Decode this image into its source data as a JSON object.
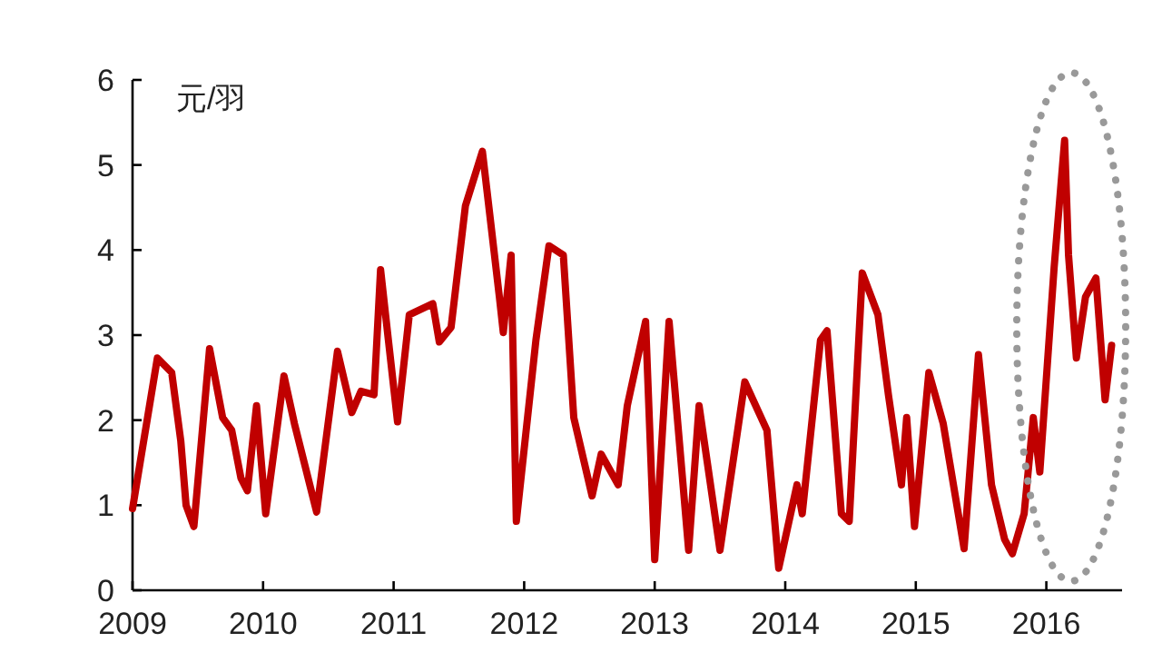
{
  "chart_data": {
    "type": "line",
    "ylabel": "元/羽",
    "xlim": [
      2009,
      2016.58
    ],
    "xticks": [
      2009,
      2010,
      2011,
      2012,
      2013,
      2014,
      2015,
      2016
    ],
    "ylim": [
      0,
      6
    ],
    "yticks": [
      0,
      1,
      2,
      3,
      4,
      5,
      6
    ],
    "grid": false,
    "marker": "none",
    "line_style": "solid",
    "series": [
      {
        "color": "#c00000",
        "x": [
          2009.0,
          2009.19,
          2009.3,
          2009.37,
          2009.41,
          2009.47,
          2009.59,
          2009.69,
          2009.76,
          2009.83,
          2009.88,
          2009.95,
          2010.02,
          2010.16,
          2010.24,
          2010.41,
          2010.57,
          2010.68,
          2010.75,
          2010.85,
          2010.9,
          2010.96,
          2011.03,
          2011.12,
          2011.3,
          2011.35,
          2011.44,
          2011.55,
          2011.68,
          2011.81,
          2011.84,
          2011.9,
          2011.94,
          2012.09,
          2012.19,
          2012.3,
          2012.38,
          2012.52,
          2012.59,
          2012.72,
          2012.79,
          2012.93,
          2013.0,
          2013.11,
          2013.26,
          2013.34,
          2013.5,
          2013.69,
          2013.86,
          2013.95,
          2014.09,
          2014.13,
          2014.27,
          2014.32,
          2014.43,
          2014.49,
          2014.59,
          2014.71,
          2014.79,
          2014.89,
          2014.93,
          2014.99,
          2015.1,
          2015.21,
          2015.37,
          2015.48,
          2015.58,
          2015.68,
          2015.74,
          2015.83,
          2015.9,
          2015.95,
          2016.06,
          2016.14,
          2016.17,
          2016.23,
          2016.3,
          2016.38,
          2016.45,
          2016.5
        ],
        "values": [
          0.96,
          2.73,
          2.56,
          1.75,
          1.0,
          0.75,
          2.84,
          2.03,
          1.88,
          1.32,
          1.17,
          2.17,
          0.9,
          2.52,
          1.96,
          0.92,
          2.81,
          2.09,
          2.34,
          2.3,
          3.77,
          2.94,
          1.98,
          3.24,
          3.37,
          2.92,
          3.09,
          4.52,
          5.16,
          3.45,
          3.03,
          3.94,
          0.81,
          2.94,
          4.05,
          3.94,
          2.03,
          1.11,
          1.6,
          1.24,
          2.17,
          3.16,
          0.36,
          3.16,
          0.47,
          2.17,
          0.47,
          2.45,
          1.88,
          0.26,
          1.24,
          0.9,
          2.94,
          3.05,
          0.9,
          0.81,
          3.73,
          3.24,
          2.3,
          1.24,
          2.03,
          0.75,
          2.56,
          1.96,
          0.49,
          2.77,
          1.24,
          0.6,
          0.43,
          0.9,
          2.03,
          1.39,
          3.8,
          5.29,
          3.94,
          2.73,
          3.45,
          3.67,
          2.24,
          2.88
        ]
      }
    ]
  }
}
